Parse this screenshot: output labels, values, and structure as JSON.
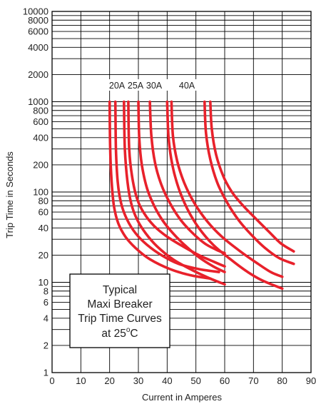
{
  "chart_data": {
    "type": "line",
    "title": "",
    "xlabel": "Current in Amperes",
    "ylabel": "Trip Time in Seconds",
    "x_scale": "linear",
    "y_scale": "log",
    "xlim": [
      0,
      90
    ],
    "ylim": [
      1,
      10000
    ],
    "x_ticks": [
      0,
      10,
      20,
      30,
      40,
      50,
      60,
      70,
      80,
      90
    ],
    "y_tick_labels": [
      1,
      2,
      4,
      6,
      8,
      10,
      20,
      40,
      60,
      80,
      100,
      200,
      400,
      600,
      800,
      1000,
      2000,
      4000,
      6000,
      8000,
      10000
    ],
    "grid": true,
    "curve_color": "#e8212b",
    "series_labels": [
      "20A",
      "25A",
      "30A",
      "40A"
    ],
    "series": [
      {
        "name": "20A",
        "bands": [
          [
            [
              20.0,
              1000
            ],
            [
              20.2,
              300
            ],
            [
              20.7,
              130
            ],
            [
              21.5,
              70
            ],
            [
              23.0,
              45
            ],
            [
              25.5,
              32
            ],
            [
              29.0,
              24
            ],
            [
              34.0,
              18
            ],
            [
              41.0,
              14
            ],
            [
              48.0,
              12
            ],
            [
              55.0,
              11
            ]
          ],
          [
            [
              22.0,
              1000
            ],
            [
              22.2,
              300
            ],
            [
              22.8,
              130
            ],
            [
              24.0,
              75
            ],
            [
              26.0,
              50
            ],
            [
              29.0,
              35
            ],
            [
              33.0,
              26
            ],
            [
              38.0,
              20
            ],
            [
              44.0,
              16
            ],
            [
              51.0,
              14
            ],
            [
              58.0,
              13
            ]
          ]
        ]
      },
      {
        "name": "25A",
        "bands": [
          [
            [
              25.0,
              1000
            ],
            [
              25.3,
              300
            ],
            [
              26.2,
              130
            ],
            [
              27.5,
              75
            ],
            [
              29.5,
              50
            ],
            [
              32.5,
              35
            ],
            [
              36.5,
              25
            ],
            [
              42.0,
              18
            ],
            [
              49.0,
              13.5
            ],
            [
              55.0,
              11
            ],
            [
              60.0,
              9.5
            ]
          ],
          [
            [
              26.5,
              1000
            ],
            [
              26.8,
              300
            ],
            [
              27.8,
              150
            ],
            [
              29.5,
              85
            ],
            [
              32.0,
              58
            ],
            [
              35.5,
              42
            ],
            [
              40.0,
              32
            ],
            [
              45.5,
              25
            ],
            [
              51.0,
              20
            ],
            [
              56.0,
              17
            ],
            [
              60.0,
              15
            ]
          ]
        ]
      },
      {
        "name": "30A",
        "bands": [
          [
            [
              30.0,
              1000
            ],
            [
              30.3,
              400
            ],
            [
              31.2,
              200
            ],
            [
              33.0,
              110
            ],
            [
              35.5,
              70
            ],
            [
              38.5,
              48
            ],
            [
              42.0,
              35
            ],
            [
              46.0,
              26
            ],
            [
              51.0,
              19
            ],
            [
              56.0,
              15
            ],
            [
              60.0,
              13
            ]
          ],
          [
            [
              34.0,
              1000
            ],
            [
              34.5,
              420
            ],
            [
              35.8,
              210
            ],
            [
              38.0,
              120
            ],
            [
              41.0,
              75
            ],
            [
              44.5,
              50
            ],
            [
              48.5,
              36
            ],
            [
              53.0,
              27
            ],
            [
              57.0,
              23
            ],
            [
              60.0,
              21
            ]
          ]
        ]
      },
      {
        "name": "40A",
        "bands": [
          [
            [
              40.0,
              1000
            ],
            [
              40.5,
              400
            ],
            [
              41.8,
              200
            ],
            [
              44.0,
              110
            ],
            [
              47.0,
              65
            ],
            [
              51.0,
              40
            ],
            [
              56.0,
              26
            ],
            [
              62.0,
              18
            ],
            [
              68.0,
              13
            ],
            [
              73.0,
              10.5
            ],
            [
              80.0,
              8.5
            ]
          ],
          [
            [
              41.5,
              1000
            ],
            [
              42.0,
              420
            ],
            [
              43.5,
              220
            ],
            [
              46.0,
              125
            ],
            [
              49.5,
              75
            ],
            [
              54.0,
              47
            ],
            [
              59.0,
              32
            ],
            [
              65.0,
              22.5
            ],
            [
              71.0,
              16.5
            ],
            [
              76.0,
              13
            ],
            [
              80.0,
              11.5
            ]
          ],
          [
            [
              55.0,
              1000
            ],
            [
              55.5,
              500
            ],
            [
              57.0,
              260
            ],
            [
              59.5,
              150
            ],
            [
              62.5,
              100
            ],
            [
              66.5,
              70
            ],
            [
              71.0,
              50
            ],
            [
              75.5,
              36
            ],
            [
              79.5,
              27
            ],
            [
              84.0,
              22
            ]
          ],
          [
            [
              53.0,
              1000
            ],
            [
              53.5,
              450
            ],
            [
              55.0,
              230
            ],
            [
              57.5,
              125
            ],
            [
              61.0,
              75
            ],
            [
              65.0,
              48
            ],
            [
              69.5,
              33
            ],
            [
              74.0,
              24
            ],
            [
              79.0,
              18.5
            ],
            [
              84.0,
              16
            ]
          ]
        ]
      }
    ],
    "annotation": {
      "lines": [
        "Typical",
        "Maxi Breaker",
        "Trip Time Curves"
      ],
      "last_line_main": "at 25",
      "last_line_sup": "o",
      "last_line_tail": "C"
    }
  }
}
